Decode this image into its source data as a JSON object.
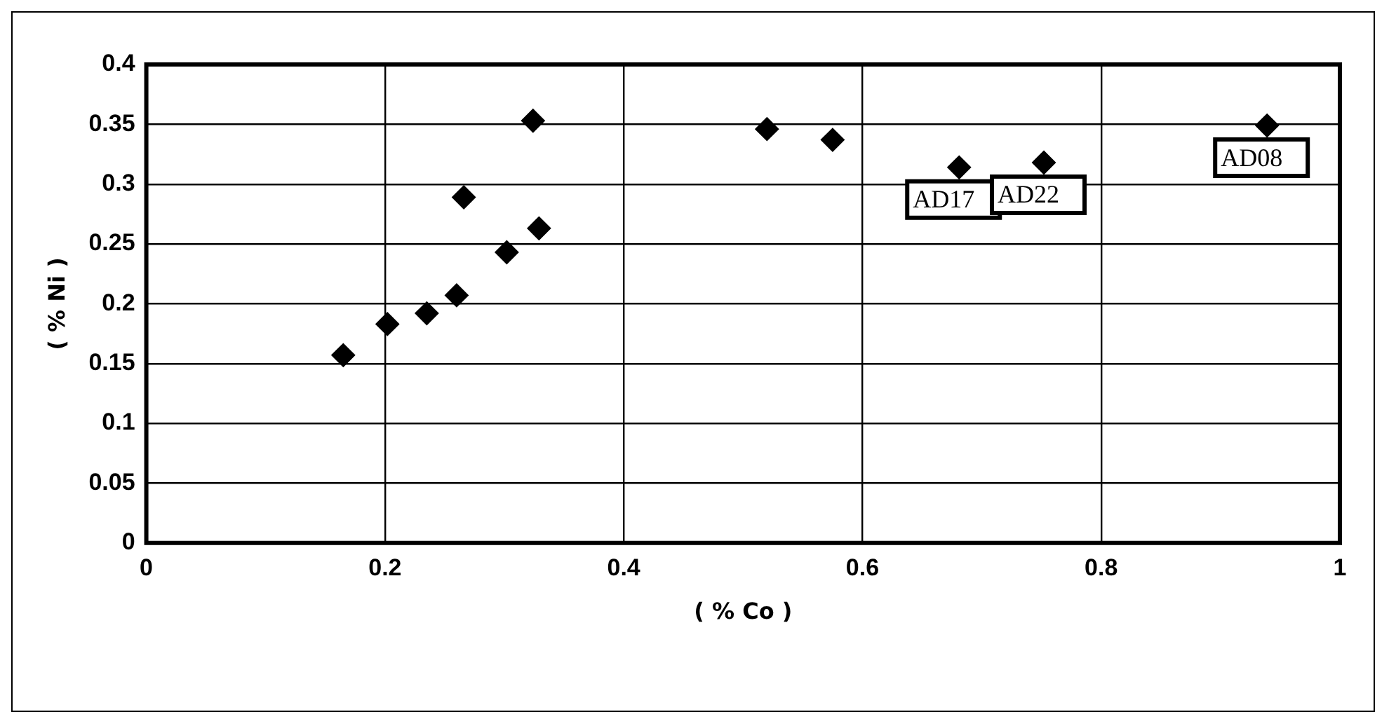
{
  "chart_data": {
    "type": "scatter",
    "xlabel": "( % Co )",
    "ylabel": "( % Ni )",
    "x": [
      0.165,
      0.202,
      0.235,
      0.26,
      0.302,
      0.266,
      0.329,
      0.324,
      0.52,
      0.575,
      0.681,
      0.752,
      0.939
    ],
    "series": [
      {
        "color": "#000000",
        "values": [
          0.157,
          0.183,
          0.192,
          0.207,
          0.243,
          0.289,
          0.263,
          0.353,
          0.346,
          0.337,
          0.314,
          0.318,
          0.349
        ]
      }
    ],
    "xlim": [
      0,
      1
    ],
    "xticks": [
      0,
      0.2,
      0.4,
      0.6,
      0.8,
      1
    ],
    "ylim": [
      0,
      0.4
    ],
    "yticks": [
      0,
      0.05,
      0.1,
      0.15,
      0.2,
      0.25,
      0.3,
      0.35,
      0.4
    ],
    "grid": true,
    "legend": false,
    "marker": "diamond",
    "annotations": [
      {
        "text": "AD17",
        "x": 0.681,
        "y": 0.314
      },
      {
        "text": "AD22",
        "x": 0.752,
        "y": 0.318
      },
      {
        "text": "AD08",
        "x": 0.939,
        "y": 0.349
      }
    ]
  }
}
